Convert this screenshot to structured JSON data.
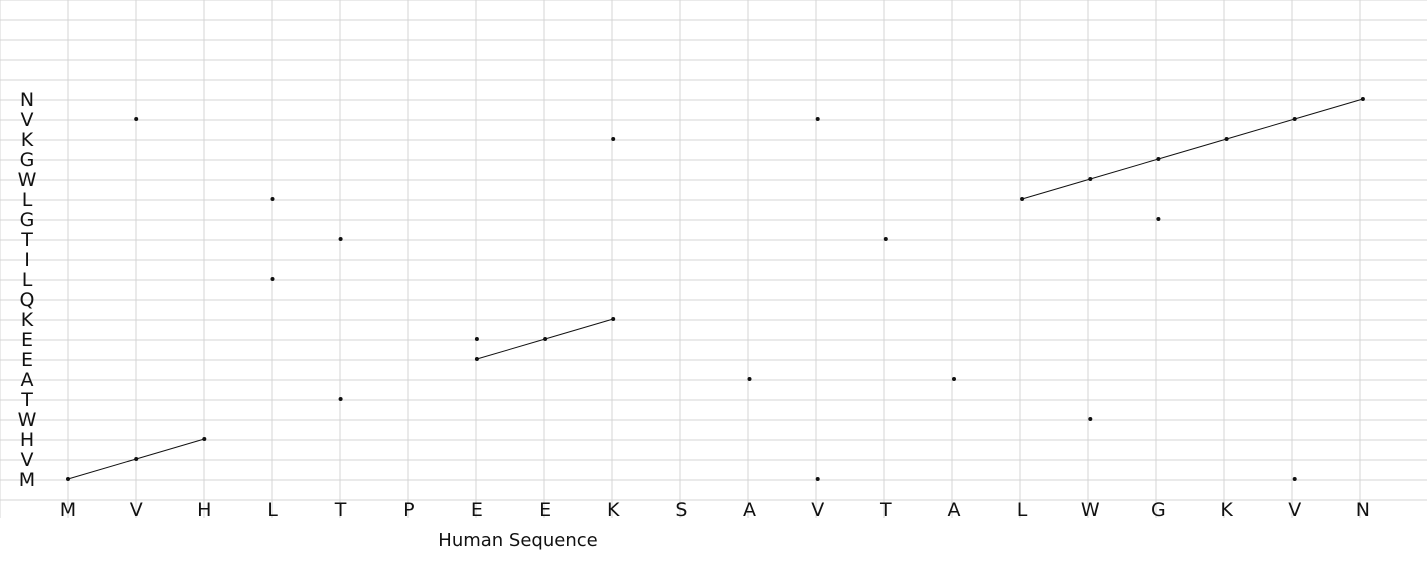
{
  "chart_data": {
    "type": "scatter",
    "xlabel": "Human Sequence",
    "ylabel": "",
    "x_categories": [
      "M",
      "V",
      "H",
      "L",
      "T",
      "P",
      "E",
      "E",
      "K",
      "S",
      "A",
      "V",
      "T",
      "A",
      "L",
      "W",
      "G",
      "K",
      "V",
      "N"
    ],
    "y_categories": [
      "M",
      "V",
      "H",
      "W",
      "T",
      "A",
      "E",
      "E",
      "K",
      "Q",
      "L",
      "I",
      "T",
      "G",
      "L",
      "W",
      "G",
      "K",
      "V",
      "N"
    ],
    "points": [
      {
        "x": 1,
        "y": 1
      },
      {
        "x": 2,
        "y": 2
      },
      {
        "x": 3,
        "y": 3
      },
      {
        "x": 2,
        "y": 19
      },
      {
        "x": 4,
        "y": 15
      },
      {
        "x": 4,
        "y": 11
      },
      {
        "x": 5,
        "y": 13
      },
      {
        "x": 5,
        "y": 5
      },
      {
        "x": 7,
        "y": 7
      },
      {
        "x": 7,
        "y": 8
      },
      {
        "x": 8,
        "y": 8
      },
      {
        "x": 9,
        "y": 9
      },
      {
        "x": 9,
        "y": 18
      },
      {
        "x": 11,
        "y": 6
      },
      {
        "x": 12,
        "y": 19
      },
      {
        "x": 12,
        "y": 1
      },
      {
        "x": 13,
        "y": 13
      },
      {
        "x": 14,
        "y": 6
      },
      {
        "x": 15,
        "y": 15
      },
      {
        "x": 16,
        "y": 16
      },
      {
        "x": 16,
        "y": 4
      },
      {
        "x": 17,
        "y": 17
      },
      {
        "x": 17,
        "y": 14
      },
      {
        "x": 18,
        "y": 18
      },
      {
        "x": 19,
        "y": 19
      },
      {
        "x": 19,
        "y": 1
      },
      {
        "x": 20,
        "y": 20
      }
    ],
    "segments": [
      [
        {
          "x": 1,
          "y": 1
        },
        {
          "x": 2,
          "y": 2
        },
        {
          "x": 3,
          "y": 3
        }
      ],
      [
        {
          "x": 7,
          "y": 7
        },
        {
          "x": 8,
          "y": 8
        },
        {
          "x": 9,
          "y": 9
        }
      ],
      [
        {
          "x": 15,
          "y": 15
        },
        {
          "x": 16,
          "y": 16
        },
        {
          "x": 17,
          "y": 17
        },
        {
          "x": 18,
          "y": 18
        },
        {
          "x": 19,
          "y": 19
        },
        {
          "x": 20,
          "y": 20
        }
      ]
    ],
    "grid": true
  }
}
